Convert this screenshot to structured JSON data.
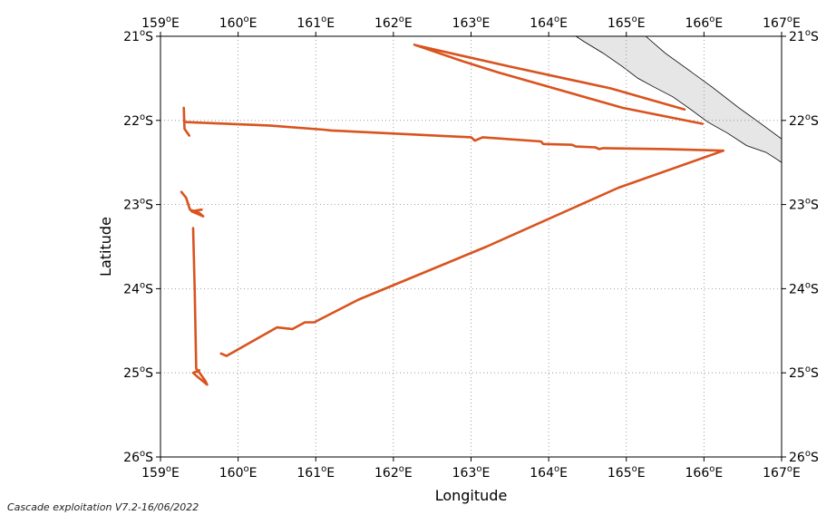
{
  "chart_data": {
    "type": "map",
    "xlabel": "Longitude",
    "ylabel": "Latitude",
    "xlim": [
      159,
      167
    ],
    "ylim": [
      -26,
      -21
    ],
    "grid": true,
    "x_ticks": [
      {
        "value": 159,
        "label": "159",
        "suffix": "E"
      },
      {
        "value": 160,
        "label": "160",
        "suffix": "E"
      },
      {
        "value": 161,
        "label": "161",
        "suffix": "E"
      },
      {
        "value": 162,
        "label": "162",
        "suffix": "E"
      },
      {
        "value": 163,
        "label": "163",
        "suffix": "E"
      },
      {
        "value": 164,
        "label": "164",
        "suffix": "E"
      },
      {
        "value": 165,
        "label": "165",
        "suffix": "E"
      },
      {
        "value": 166,
        "label": "166",
        "suffix": "E"
      },
      {
        "value": 167,
        "label": "167",
        "suffix": "E"
      }
    ],
    "y_ticks": [
      {
        "value": -21,
        "label": "21",
        "suffix": "S"
      },
      {
        "value": -22,
        "label": "22",
        "suffix": "S"
      },
      {
        "value": -23,
        "label": "23",
        "suffix": "S"
      },
      {
        "value": -24,
        "label": "24",
        "suffix": "S"
      },
      {
        "value": -25,
        "label": "25",
        "suffix": "S"
      },
      {
        "value": -26,
        "label": "26",
        "suffix": "S"
      }
    ],
    "track_color": "#d9531e",
    "land_color": "#e6e6e6",
    "tracks": [
      {
        "points": [
          [
            162.27,
            -21.1
          ],
          [
            162.9,
            -21.3
          ],
          [
            163.35,
            -21.43
          ],
          [
            164.95,
            -21.85
          ],
          [
            165.98,
            -22.04
          ]
        ]
      },
      {
        "points": [
          [
            162.3,
            -21.11
          ],
          [
            163.5,
            -21.36
          ],
          [
            164.8,
            -21.62
          ],
          [
            165.75,
            -21.87
          ]
        ]
      },
      {
        "points": [
          [
            159.33,
            -22.02
          ],
          [
            160.4,
            -22.06
          ],
          [
            161.1,
            -22.11
          ],
          [
            161.2,
            -22.12
          ],
          [
            163.0,
            -22.2
          ],
          [
            163.05,
            -22.24
          ],
          [
            163.15,
            -22.2
          ],
          [
            163.9,
            -22.25
          ],
          [
            163.93,
            -22.28
          ],
          [
            164.3,
            -22.29
          ],
          [
            164.35,
            -22.31
          ],
          [
            164.6,
            -22.32
          ],
          [
            164.65,
            -22.34
          ],
          [
            164.7,
            -22.33
          ],
          [
            165.5,
            -22.34
          ],
          [
            166.25,
            -22.36
          ],
          [
            164.9,
            -22.8
          ],
          [
            163.2,
            -23.5
          ],
          [
            161.55,
            -24.13
          ],
          [
            160.98,
            -24.4
          ],
          [
            160.86,
            -24.4
          ],
          [
            160.7,
            -24.48
          ],
          [
            160.5,
            -24.46
          ],
          [
            159.85,
            -24.8
          ],
          [
            159.78,
            -24.77
          ]
        ]
      },
      {
        "points": [
          [
            159.3,
            -21.85
          ],
          [
            159.31,
            -22.1
          ],
          [
            159.37,
            -22.18
          ]
        ]
      },
      {
        "points": [
          [
            159.27,
            -22.85
          ],
          [
            159.33,
            -22.92
          ],
          [
            159.38,
            -23.06
          ],
          [
            159.5,
            -23.1
          ],
          [
            159.55,
            -23.14
          ],
          [
            159.4,
            -23.08
          ],
          [
            159.53,
            -23.06
          ]
        ]
      },
      {
        "points": [
          [
            159.42,
            -23.28
          ],
          [
            159.44,
            -24.0
          ],
          [
            159.46,
            -24.95
          ],
          [
            159.52,
            -25.02
          ],
          [
            159.58,
            -25.1
          ],
          [
            159.6,
            -25.14
          ],
          [
            159.48,
            -25.05
          ],
          [
            159.42,
            -25.0
          ],
          [
            159.5,
            -24.97
          ]
        ]
      }
    ],
    "land": [
      [
        [
          164.35,
          -21.0
        ],
        [
          164.45,
          -21.06
        ],
        [
          164.7,
          -21.2
        ],
        [
          164.95,
          -21.36
        ],
        [
          165.15,
          -21.5
        ],
        [
          165.35,
          -21.6
        ],
        [
          165.6,
          -21.72
        ],
        [
          165.8,
          -21.85
        ],
        [
          166.05,
          -22.02
        ],
        [
          166.3,
          -22.15
        ],
        [
          166.55,
          -22.3
        ],
        [
          166.8,
          -22.38
        ],
        [
          166.92,
          -22.45
        ],
        [
          167.0,
          -22.5
        ],
        [
          167.0,
          -22.22
        ],
        [
          166.75,
          -22.05
        ],
        [
          166.45,
          -21.85
        ],
        [
          166.1,
          -21.6
        ],
        [
          165.8,
          -21.4
        ],
        [
          165.5,
          -21.2
        ],
        [
          165.25,
          -21.0
        ]
      ]
    ]
  },
  "footer": "Cascade exploitation V7.2-16/06/2022"
}
